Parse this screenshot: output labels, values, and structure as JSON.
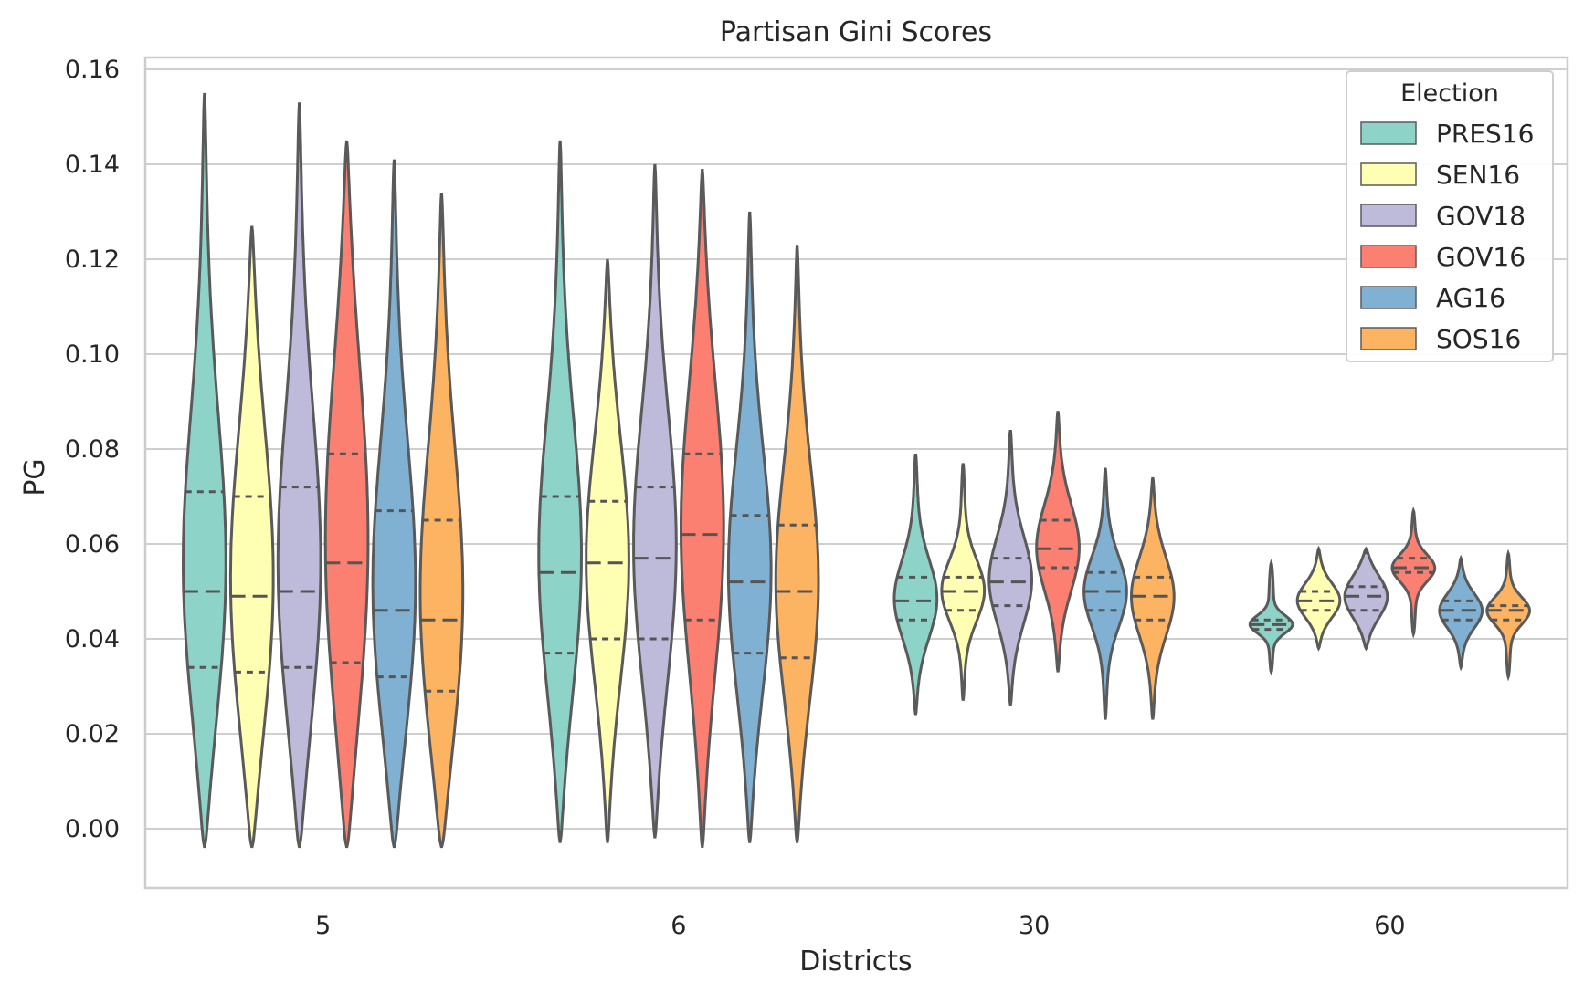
{
  "chart_data": {
    "type": "violin",
    "title": "Partisan Gini Scores",
    "xlabel": "Districts",
    "ylabel": "PG",
    "ylim": [
      -0.0125,
      0.1625
    ],
    "yticks": [
      0.0,
      0.02,
      0.04,
      0.06,
      0.08,
      0.1,
      0.12,
      0.14,
      0.16
    ],
    "ytick_labels": [
      "0.00",
      "0.02",
      "0.04",
      "0.06",
      "0.08",
      "0.10",
      "0.12",
      "0.14",
      "0.16"
    ],
    "categories": [
      "5",
      "6",
      "30",
      "60"
    ],
    "grid": true,
    "legend": {
      "title": "Election",
      "position": "top-right"
    },
    "inner": "quartile",
    "series": [
      {
        "name": "PRES16",
        "color": "#8dd3c7",
        "groups": [
          {
            "min": -0.004,
            "max": 0.155,
            "q1": 0.034,
            "median": 0.05,
            "q3": 0.071
          },
          {
            "min": -0.003,
            "max": 0.145,
            "q1": 0.037,
            "median": 0.054,
            "q3": 0.07
          },
          {
            "min": 0.024,
            "max": 0.079,
            "q1": 0.044,
            "median": 0.048,
            "q3": 0.053
          },
          {
            "min": 0.033,
            "max": 0.056,
            "q1": 0.042,
            "median": 0.043,
            "q3": 0.044
          }
        ]
      },
      {
        "name": "SEN16",
        "color": "#ffffb3",
        "groups": [
          {
            "min": -0.004,
            "max": 0.127,
            "q1": 0.033,
            "median": 0.049,
            "q3": 0.07
          },
          {
            "min": -0.003,
            "max": 0.12,
            "q1": 0.04,
            "median": 0.056,
            "q3": 0.069
          },
          {
            "min": 0.027,
            "max": 0.077,
            "q1": 0.046,
            "median": 0.05,
            "q3": 0.053
          },
          {
            "min": 0.038,
            "max": 0.059,
            "q1": 0.046,
            "median": 0.048,
            "q3": 0.05
          }
        ]
      },
      {
        "name": "GOV18",
        "color": "#bebada",
        "groups": [
          {
            "min": -0.004,
            "max": 0.153,
            "q1": 0.034,
            "median": 0.05,
            "q3": 0.072
          },
          {
            "min": -0.002,
            "max": 0.14,
            "q1": 0.04,
            "median": 0.057,
            "q3": 0.072
          },
          {
            "min": 0.026,
            "max": 0.084,
            "q1": 0.047,
            "median": 0.052,
            "q3": 0.057
          },
          {
            "min": 0.038,
            "max": 0.059,
            "q1": 0.046,
            "median": 0.049,
            "q3": 0.051
          }
        ]
      },
      {
        "name": "GOV16",
        "color": "#fb8072",
        "groups": [
          {
            "min": -0.004,
            "max": 0.145,
            "q1": 0.035,
            "median": 0.056,
            "q3": 0.079
          },
          {
            "min": -0.004,
            "max": 0.139,
            "q1": 0.044,
            "median": 0.062,
            "q3": 0.079
          },
          {
            "min": 0.033,
            "max": 0.088,
            "q1": 0.055,
            "median": 0.059,
            "q3": 0.065
          },
          {
            "min": 0.041,
            "max": 0.067,
            "q1": 0.054,
            "median": 0.055,
            "q3": 0.057
          }
        ]
      },
      {
        "name": "AG16",
        "color": "#80b1d3",
        "groups": [
          {
            "min": -0.004,
            "max": 0.141,
            "q1": 0.032,
            "median": 0.046,
            "q3": 0.067
          },
          {
            "min": -0.003,
            "max": 0.13,
            "q1": 0.037,
            "median": 0.052,
            "q3": 0.066
          },
          {
            "min": 0.023,
            "max": 0.076,
            "q1": 0.046,
            "median": 0.05,
            "q3": 0.054
          },
          {
            "min": 0.034,
            "max": 0.057,
            "q1": 0.044,
            "median": 0.046,
            "q3": 0.048
          }
        ]
      },
      {
        "name": "SOS16",
        "color": "#fdb462",
        "groups": [
          {
            "min": -0.004,
            "max": 0.134,
            "q1": 0.029,
            "median": 0.044,
            "q3": 0.065
          },
          {
            "min": -0.003,
            "max": 0.123,
            "q1": 0.036,
            "median": 0.05,
            "q3": 0.064
          },
          {
            "min": 0.023,
            "max": 0.074,
            "q1": 0.044,
            "median": 0.049,
            "q3": 0.053
          },
          {
            "min": 0.032,
            "max": 0.058,
            "q1": 0.044,
            "median": 0.046,
            "q3": 0.047
          }
        ]
      }
    ]
  }
}
